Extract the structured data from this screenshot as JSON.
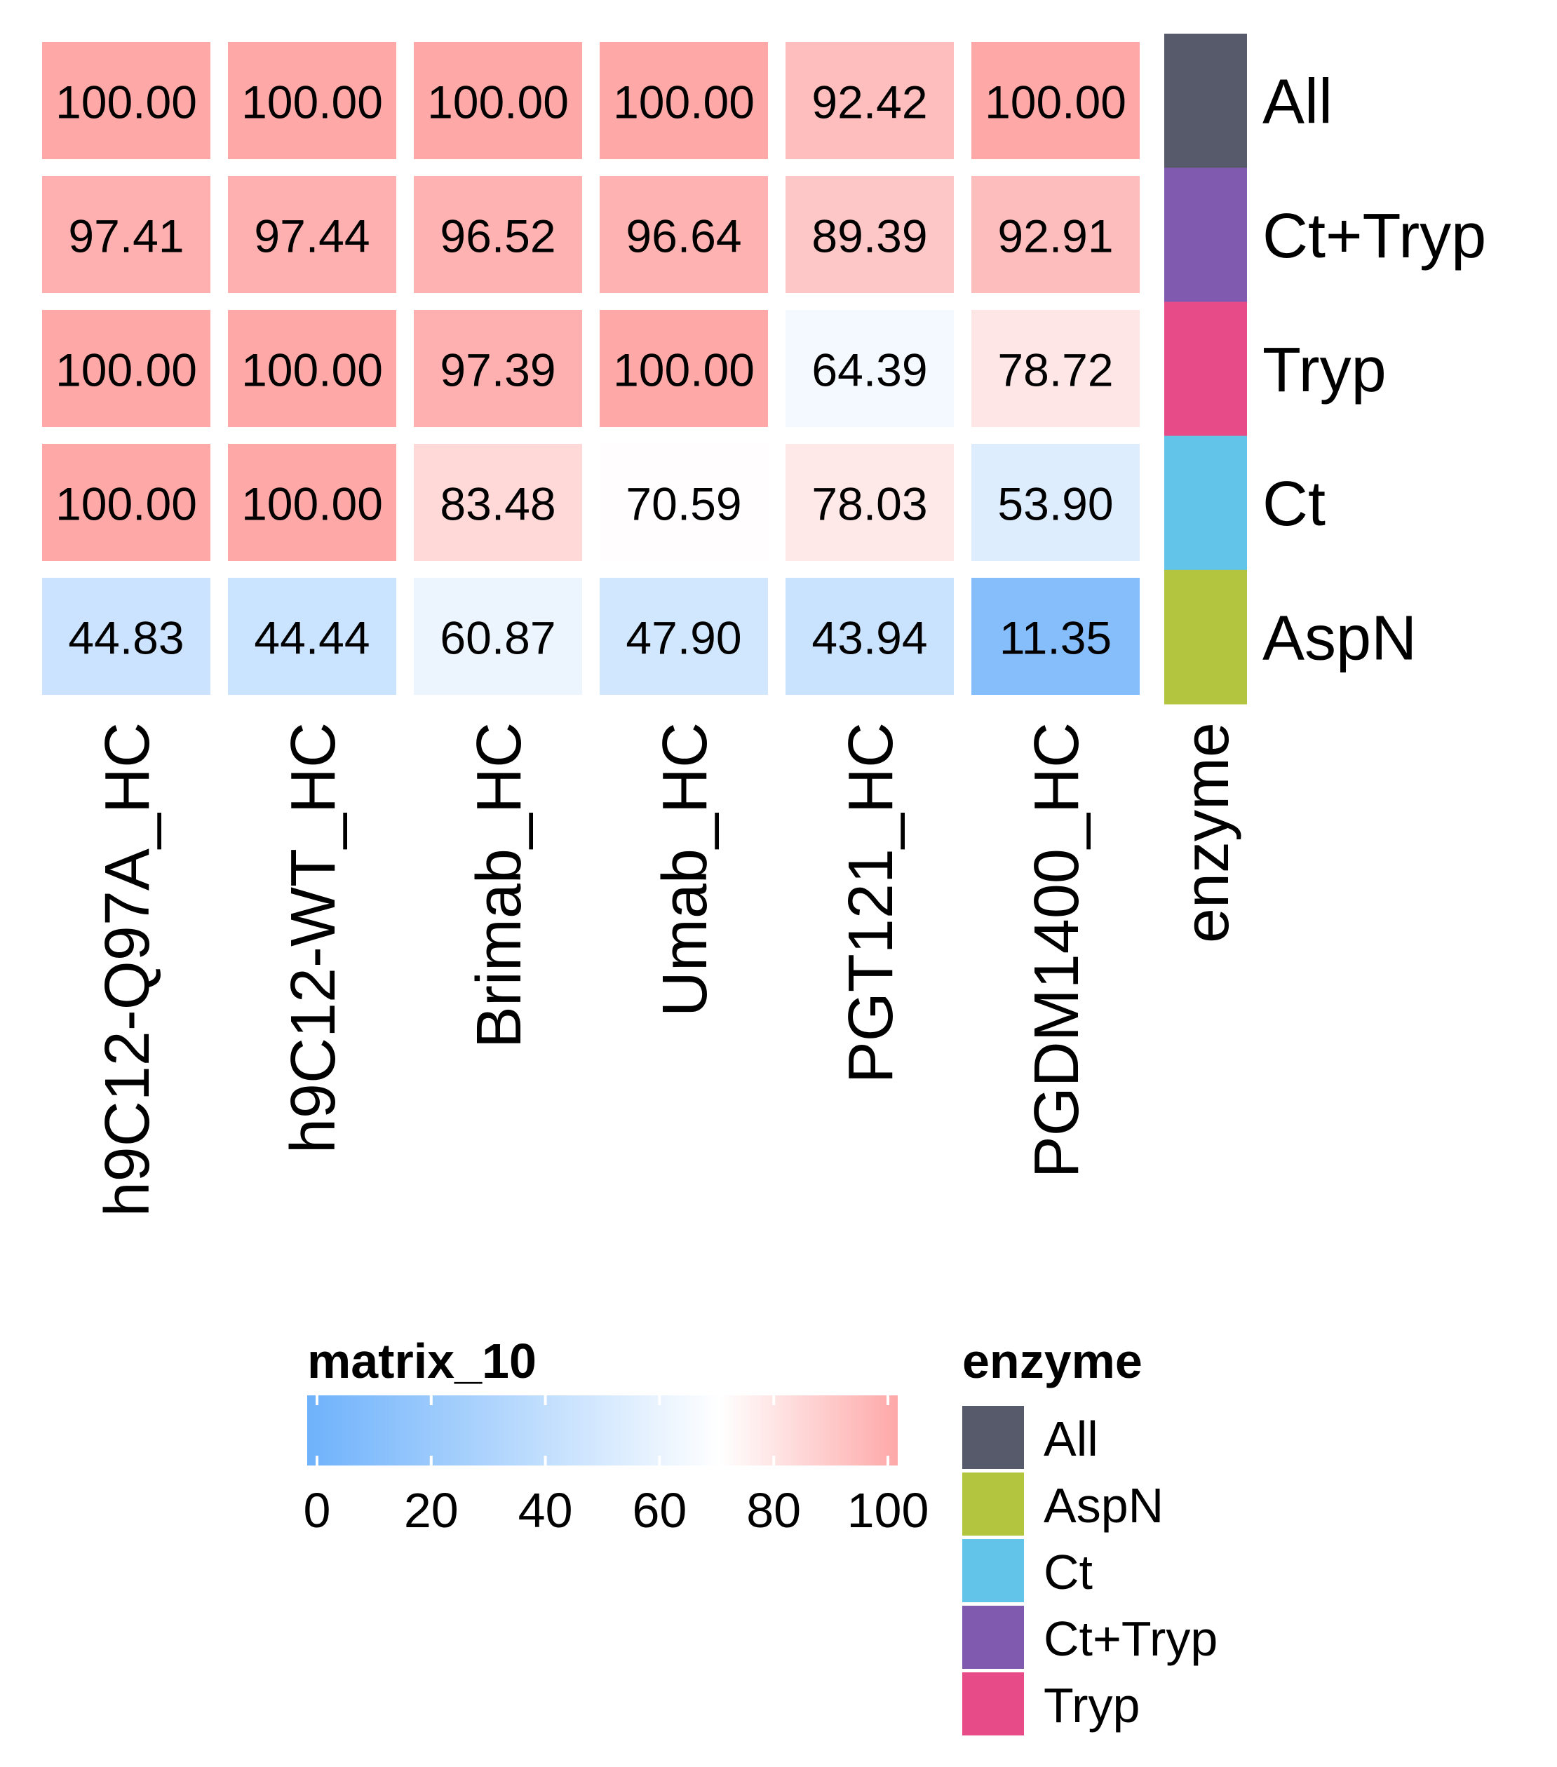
{
  "chart_data": {
    "type": "heatmap",
    "matrix_name": "matrix_10",
    "columns": [
      "h9C12-Q97A_HC",
      "h9C12-WT_HC",
      "Brimab_HC",
      "Umab_HC",
      "PGT121_HC",
      "PGDM1400_HC"
    ],
    "rows": [
      "All",
      "Ct+Tryp",
      "Tryp",
      "Ct",
      "AspN"
    ],
    "values": [
      [
        100.0,
        100.0,
        100.0,
        100.0,
        92.42,
        100.0
      ],
      [
        97.41,
        97.44,
        96.52,
        96.64,
        89.39,
        92.91
      ],
      [
        100.0,
        100.0,
        97.39,
        100.0,
        64.39,
        78.72
      ],
      [
        100.0,
        100.0,
        83.48,
        70.59,
        78.03,
        53.9
      ],
      [
        44.83,
        44.44,
        60.87,
        47.9,
        43.94,
        11.35
      ]
    ],
    "value_labels": [
      [
        "100.00",
        "100.00",
        "100.00",
        "100.00",
        "92.42",
        "100.00"
      ],
      [
        "97.41",
        "97.44",
        "96.52",
        "96.64",
        "89.39",
        "92.91"
      ],
      [
        "100.00",
        "100.00",
        "97.39",
        "100.00",
        "64.39",
        "78.72"
      ],
      [
        "100.00",
        "100.00",
        "83.48",
        "70.59",
        "78.03",
        "53.90"
      ],
      [
        "44.83",
        "44.44",
        "60.87",
        "47.90",
        "43.94",
        "11.35"
      ]
    ],
    "color_scale": {
      "range": [
        0,
        100
      ],
      "stops": [
        {
          "value": 0,
          "color": "#6eb2fb"
        },
        {
          "value": 70,
          "color": "#ffffff"
        },
        {
          "value": 100,
          "color": "#fea8a8"
        }
      ],
      "ticks": [
        "0",
        "20",
        "40",
        "60",
        "80",
        "100"
      ],
      "tick_values": [
        0,
        20,
        40,
        60,
        80,
        100
      ]
    },
    "row_annotation": {
      "name": "enzyme",
      "colors": {
        "All": "#575a6b",
        "Ct+Tryp": "#7f5aaf",
        "Tryp": "#e74c88",
        "Ct": "#62c4e8",
        "AspN": "#b3c43e"
      }
    },
    "legend_enzyme": {
      "title": "enzyme",
      "entries": [
        {
          "label": "All",
          "color": "#575a6b"
        },
        {
          "label": "AspN",
          "color": "#b3c43e"
        },
        {
          "label": "Ct",
          "color": "#62c4e8"
        },
        {
          "label": "Ct+Tryp",
          "color": "#7f5aaf"
        },
        {
          "label": "Tryp",
          "color": "#e74c88"
        }
      ]
    }
  }
}
